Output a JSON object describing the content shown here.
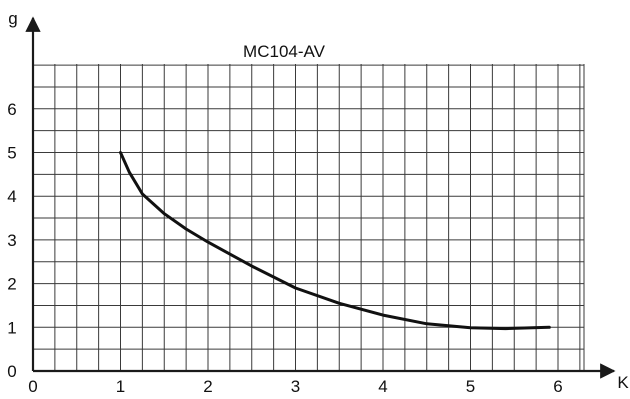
{
  "chart_data": {
    "type": "line",
    "title": "MC104-AV",
    "xlabel": "K",
    "ylabel": "g",
    "xlim": [
      0,
      6.3
    ],
    "ylim": [
      0,
      7
    ],
    "x_ticks": [
      "0",
      "1",
      "2",
      "3",
      "4",
      "5",
      "6"
    ],
    "y_ticks": [
      "0",
      "1",
      "2",
      "3",
      "4",
      "5",
      "6"
    ],
    "grid": true,
    "series": [
      {
        "x": [
          1.0,
          1.1,
          1.25,
          1.5,
          1.75,
          2.0,
          2.5,
          3.0,
          3.5,
          4.0,
          4.5,
          5.0,
          5.4,
          5.9
        ],
        "y": [
          5.0,
          4.55,
          4.05,
          3.6,
          3.25,
          2.95,
          2.4,
          1.9,
          1.55,
          1.28,
          1.08,
          0.99,
          0.97,
          1.0
        ]
      }
    ]
  }
}
